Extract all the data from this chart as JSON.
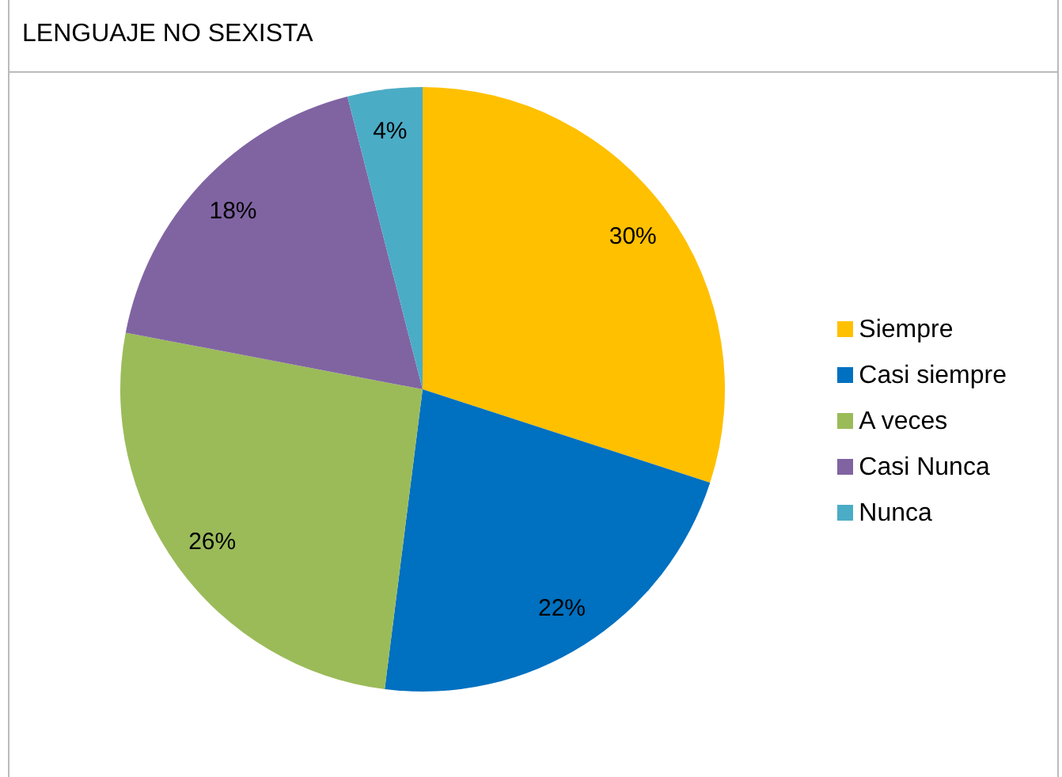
{
  "chart_data": {
    "type": "pie",
    "title": "LENGUAJE NO SEXISTA",
    "categories": [
      "Siempre",
      "Casi siempre",
      "A veces",
      "Casi Nunca",
      "Nunca"
    ],
    "values": [
      30,
      22,
      26,
      18,
      4
    ],
    "value_labels": [
      "30%",
      "22%",
      "26%",
      "18%",
      "4%"
    ],
    "colors": [
      "#ffc000",
      "#0070c0",
      "#9bbb59",
      "#8064a2",
      "#4bacc6"
    ],
    "legend": "right"
  }
}
